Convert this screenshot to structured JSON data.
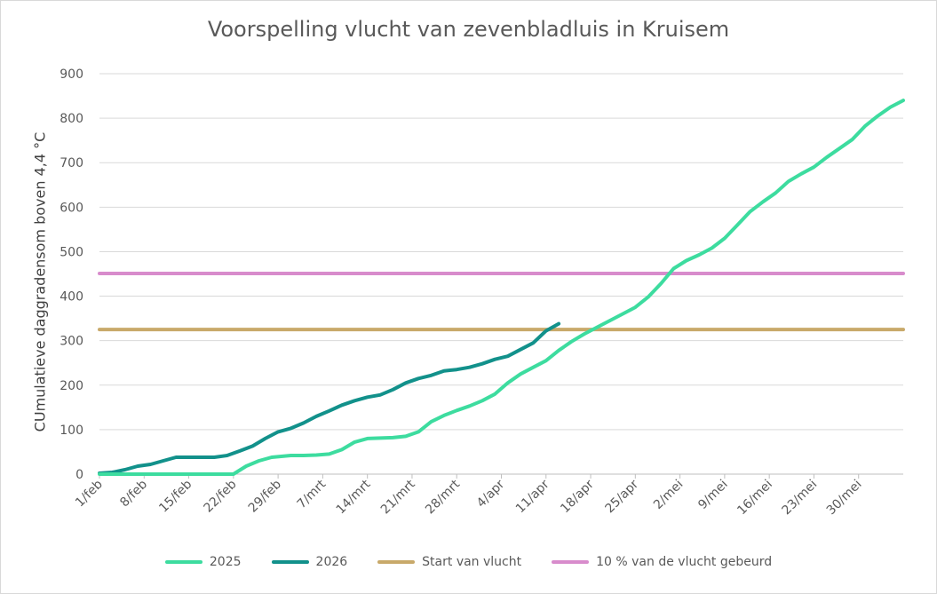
{
  "chart_data": {
    "type": "line",
    "title": "Voorspelling vlucht van zevenbladluis in Kruisem",
    "xlabel": "",
    "ylabel": "CUmulatieve daggradensom boven 4,4 °C",
    "ylim": [
      0,
      900
    ],
    "yticks": [
      0,
      100,
      200,
      300,
      400,
      500,
      600,
      700,
      800,
      900
    ],
    "x_range": [
      "1/feb",
      "6/jun"
    ],
    "xtick_labels": [
      "1/feb",
      "8/feb",
      "15/feb",
      "22/feb",
      "29/feb",
      "7/mrt",
      "14/mrt",
      "21/mrt",
      "28/mrt",
      "4/apr",
      "11/apr",
      "18/apr",
      "25/apr",
      "2/mei",
      "9/mei",
      "16/mei",
      "23/mei",
      "30/mei"
    ],
    "grid": true,
    "legend_position": "bottom",
    "series": [
      {
        "name": "2025",
        "color": "#3ddc9f",
        "x": [
          "1/feb",
          "5/feb",
          "10/feb",
          "15/feb",
          "20/feb",
          "22/feb",
          "24/feb",
          "26/feb",
          "28/feb",
          "2/mrt",
          "4/mrt",
          "6/mrt",
          "8/mrt",
          "10/mrt",
          "12/mrt",
          "14/mrt",
          "16/mrt",
          "18/mrt",
          "20/mrt",
          "22/mrt",
          "24/mrt",
          "26/mrt",
          "28/mrt",
          "30/mrt",
          "1/apr",
          "3/apr",
          "5/apr",
          "7/apr",
          "9/apr",
          "11/apr",
          "13/apr",
          "15/apr",
          "17/apr",
          "19/apr",
          "21/apr",
          "23/apr",
          "25/apr",
          "27/apr",
          "29/apr",
          "1/mei",
          "3/mei",
          "5/mei",
          "7/mei",
          "9/mei",
          "11/mei",
          "13/mei",
          "15/mei",
          "17/mei",
          "19/mei",
          "21/mei",
          "23/mei",
          "25/mei",
          "27/mei",
          "29/mei",
          "31/mei",
          "2/jun",
          "4/jun",
          "6/jun"
        ],
        "values": [
          0,
          0,
          0,
          0,
          0,
          0,
          18,
          30,
          38,
          42,
          42,
          43,
          45,
          55,
          72,
          80,
          81,
          82,
          85,
          95,
          118,
          132,
          143,
          153,
          165,
          180,
          205,
          225,
          240,
          255,
          278,
          298,
          315,
          330,
          345,
          360,
          375,
          398,
          428,
          462,
          480,
          493,
          508,
          530,
          560,
          590,
          612,
          632,
          658,
          675,
          690,
          712,
          732,
          752,
          782,
          805,
          825,
          840
        ]
      },
      {
        "name": "2026",
        "color": "#12918b",
        "x": [
          "1/feb",
          "3/feb",
          "5/feb",
          "7/feb",
          "9/feb",
          "11/feb",
          "13/feb",
          "15/feb",
          "17/feb",
          "19/feb",
          "21/feb",
          "23/feb",
          "25/feb",
          "27/feb",
          "29/feb",
          "2/mrt",
          "4/mrt",
          "6/mrt",
          "8/mrt",
          "10/mrt",
          "12/mrt",
          "14/mrt",
          "16/mrt",
          "18/mrt",
          "20/mrt",
          "22/mrt",
          "24/mrt",
          "26/mrt",
          "28/mrt",
          "30/mrt",
          "1/apr",
          "3/apr",
          "5/apr",
          "7/apr",
          "9/apr",
          "11/apr",
          "13/apr"
        ],
        "values": [
          2,
          4,
          10,
          18,
          22,
          30,
          38,
          38,
          38,
          38,
          42,
          52,
          63,
          80,
          95,
          103,
          115,
          130,
          142,
          155,
          165,
          173,
          178,
          190,
          205,
          215,
          222,
          232,
          235,
          240,
          248,
          258,
          265,
          280,
          295,
          322,
          338
        ]
      },
      {
        "name": "Start van vlucht",
        "color": "#c8a96a",
        "x": [
          "1/feb",
          "6/jun"
        ],
        "values": [
          325,
          325
        ]
      },
      {
        "name": "10 % van de vlucht gebeurd",
        "color": "#d88ccc",
        "x": [
          "1/feb",
          "6/jun"
        ],
        "values": [
          451,
          451
        ]
      }
    ]
  }
}
